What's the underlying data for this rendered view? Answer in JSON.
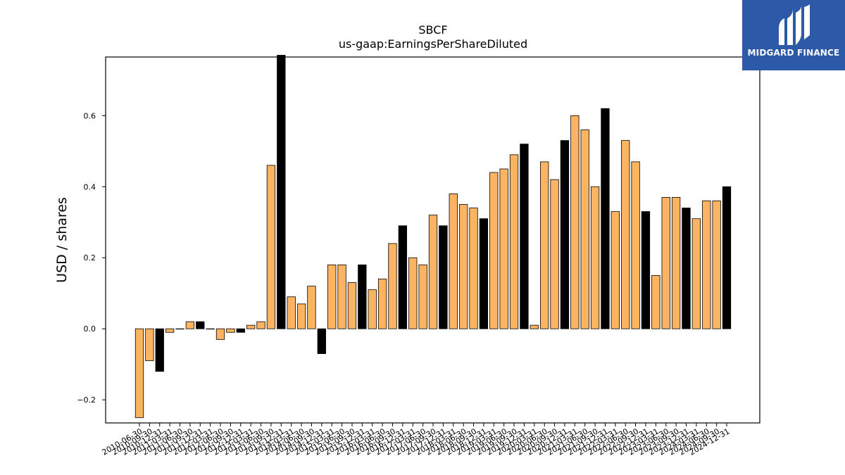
{
  "chart_data": {
    "type": "bar",
    "title": "SBCF",
    "subtitle": "us-gaap:EarningsPerShareDiluted",
    "xlabel": "",
    "ylabel": "USD / shares",
    "ylim": [
      -0.265,
      0.765
    ],
    "yticks": [
      -0.2,
      0.0,
      0.2,
      0.4,
      0.6
    ],
    "grid": false,
    "colors": {
      "quarter": "#fdb462",
      "annual": "#000000",
      "edge": "#000000"
    },
    "categories": [
      "2010-06-30",
      "2010-09-30",
      "2010-12-31",
      "2011-03-31",
      "2011-06-30",
      "2011-09-30",
      "2011-12-31",
      "2012-03-31",
      "2012-06-30",
      "2012-09-30",
      "2012-12-31",
      "2013-03-31",
      "2013-06-30",
      "2013-09-30",
      "2013-12-31",
      "2014-03-31",
      "2014-06-30",
      "2014-09-30",
      "2014-12-31",
      "2015-03-31",
      "2015-06-30",
      "2015-09-30",
      "2015-12-31",
      "2016-03-31",
      "2016-06-30",
      "2016-09-30",
      "2016-12-31",
      "2017-03-31",
      "2017-06-30",
      "2017-09-30",
      "2017-12-31",
      "2018-03-31",
      "2018-06-30",
      "2018-09-30",
      "2018-12-31",
      "2019-03-31",
      "2019-06-30",
      "2019-09-30",
      "2019-12-31",
      "2020-03-31",
      "2020-06-30",
      "2020-09-30",
      "2020-12-31",
      "2021-03-31",
      "2021-06-30",
      "2021-09-30",
      "2021-12-31",
      "2022-03-31",
      "2022-06-30",
      "2022-09-30",
      "2022-12-31",
      "2023-03-31",
      "2023-06-30",
      "2023-09-30",
      "2023-12-31",
      "2024-03-31",
      "2024-06-30",
      "2024-09-30",
      "2024-12-31"
    ],
    "values": [
      -0.25,
      -0.09,
      -0.12,
      -0.01,
      0.0,
      0.02,
      0.02,
      0.0,
      -0.03,
      -0.01,
      -0.01,
      0.01,
      0.02,
      0.46,
      0.77,
      0.09,
      0.07,
      0.12,
      -0.07,
      0.18,
      0.18,
      0.13,
      0.18,
      0.11,
      0.14,
      0.24,
      0.29,
      0.2,
      0.18,
      0.32,
      0.29,
      0.38,
      0.35,
      0.34,
      0.31,
      0.44,
      0.45,
      0.49,
      0.52,
      0.01,
      0.47,
      0.42,
      0.53,
      0.6,
      0.56,
      0.4,
      0.62,
      0.33,
      0.53,
      0.47,
      0.33,
      0.15,
      0.37,
      0.37,
      0.34,
      0.31,
      0.36,
      0.36,
      0.4
    ],
    "annual": [
      false,
      false,
      true,
      false,
      false,
      false,
      true,
      false,
      false,
      false,
      true,
      false,
      false,
      false,
      true,
      false,
      false,
      false,
      true,
      false,
      false,
      false,
      true,
      false,
      false,
      false,
      true,
      false,
      false,
      false,
      true,
      false,
      false,
      false,
      true,
      false,
      false,
      false,
      true,
      false,
      false,
      false,
      true,
      false,
      false,
      false,
      true,
      false,
      false,
      false,
      true,
      false,
      false,
      false,
      true,
      false,
      false,
      false,
      true
    ]
  },
  "logo": {
    "text": "MIDGARD FINANCE"
  }
}
